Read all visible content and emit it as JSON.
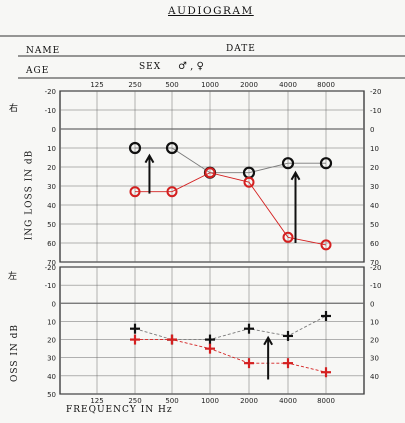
{
  "form": {
    "title": "AUDIOGRAM",
    "name_label": "NAME",
    "date_label": "DATE",
    "age_label": "AGE",
    "sex_label": "SEX",
    "sex_options": "♂ , ♀",
    "right_ear_label": "右",
    "left_ear_label": "左",
    "top_ylabel_visible": "ING LOSS IN dB",
    "bottom_ylabel_visible": "OSS IN dB",
    "xlabel": "FREQUENCY IN Hz"
  },
  "colors": {
    "grid": "#6a6a6a",
    "black_marker": "#111111",
    "red_marker": "#d42020",
    "connector_line": "#7a7a7a",
    "annotation_arrow": "#111111"
  },
  "chart_data": [
    {
      "type": "line",
      "panel": "right-ear",
      "x": [
        125,
        250,
        500,
        1000,
        2000,
        4000,
        8000
      ],
      "x_tick_labels": [
        "125",
        "250",
        "500",
        "1000",
        "2000",
        "4000",
        "8000"
      ],
      "y_tick_labels": [
        "-20",
        "-10",
        "0",
        "10",
        "20",
        "30",
        "40",
        "50",
        "60",
        "70"
      ],
      "right_tick_labels": [
        "-20",
        "-10",
        "0",
        "10",
        "20",
        "30",
        "40",
        "50",
        "60",
        "70"
      ],
      "ylim": [
        -20,
        70
      ],
      "y_inverted": true,
      "grid": true,
      "series": [
        {
          "marker": "circle-open",
          "color": "black",
          "x": [
            250,
            500,
            1000,
            2000,
            4000,
            8000
          ],
          "values": [
            10,
            10,
            23,
            23,
            18,
            18
          ]
        },
        {
          "marker": "circle",
          "color": "red",
          "x": [
            250,
            500,
            1000,
            2000,
            4000,
            8000
          ],
          "values": [
            33,
            33,
            23,
            28,
            57,
            61
          ]
        }
      ],
      "annotations": [
        {
          "type": "arrow-up",
          "x": 325,
          "from": 34,
          "to": 14
        },
        {
          "type": "arrow-up",
          "x": 4600,
          "from": 60,
          "to": 23
        }
      ]
    },
    {
      "type": "line",
      "panel": "left-ear",
      "x": [
        125,
        250,
        500,
        1000,
        2000,
        4000,
        8000
      ],
      "x_tick_labels": [
        "125",
        "250",
        "500",
        "1000",
        "2000",
        "4000",
        "8000"
      ],
      "y_tick_labels": [
        "-20",
        "-10",
        "0",
        "10",
        "20",
        "30",
        "40",
        "50"
      ],
      "right_tick_labels": [
        "-20",
        "-10",
        "0",
        "10",
        "20",
        "30",
        "40"
      ],
      "ylim": [
        -20,
        50
      ],
      "y_inverted": true,
      "grid": true,
      "series": [
        {
          "marker": "cross",
          "color": "black",
          "x": [
            250,
            500,
            1000,
            2000,
            4000,
            8000
          ],
          "values": [
            14,
            20,
            20,
            14,
            18,
            7
          ]
        },
        {
          "marker": "cross",
          "color": "red",
          "x": [
            250,
            500,
            1000,
            2000,
            4000,
            8000
          ],
          "values": [
            20,
            20,
            25,
            33,
            33,
            38
          ]
        }
      ],
      "annotations": [
        {
          "type": "arrow-up",
          "x": 2800,
          "from": 42,
          "to": 19
        }
      ]
    }
  ]
}
